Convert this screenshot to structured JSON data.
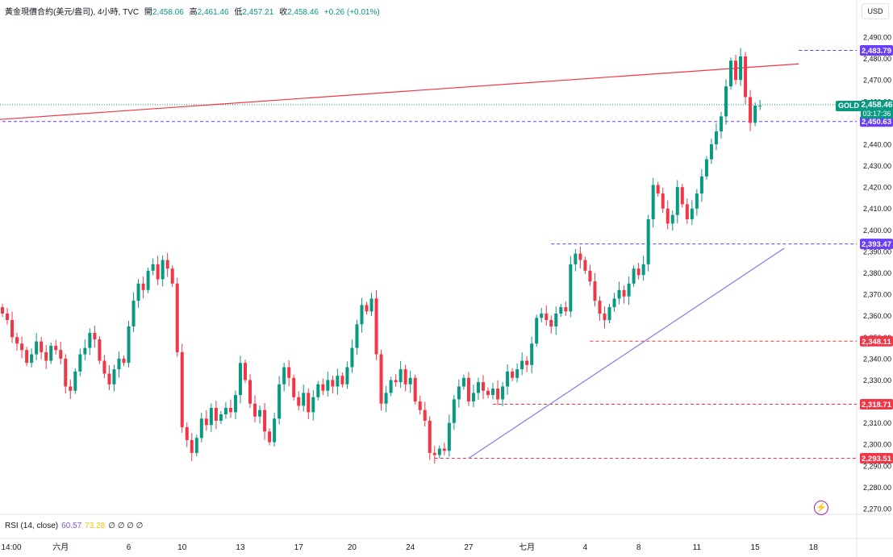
{
  "legend": {
    "symbol_title": "黃金現價合約(美元/盎司), 4小時, TVC",
    "open_label": "開",
    "open": "2,458.06",
    "high_label": "高",
    "high": "2,461.46",
    "low_label": "低",
    "low": "2,457.21",
    "close_label": "收",
    "close": "2,458.46",
    "change": "+0.26 (+0.01%)"
  },
  "currency": "USD",
  "symbol_tag": "GOLD",
  "last_price": {
    "value": "2,458.46",
    "countdown": "03:17:36"
  },
  "rsi": {
    "label": "RSI (14, close)",
    "value1": "60.57",
    "value2": "73.28",
    "zeros": "∅ ∅ ∅ ∅"
  },
  "icons": {
    "flash": "lightning-icon"
  },
  "colors": {
    "up": "#089981",
    "down": "#f23645",
    "blue_line": "#7b7fe8",
    "red_line": "#f07f86",
    "purple": "#6a3dfa",
    "red_tag": "#f23645"
  },
  "chart_data": {
    "type": "candlestick",
    "title": "黃金現價合約(美元/盎司), 4小時, TVC",
    "y_range": [
      2265,
      2495
    ],
    "y_ticks": [
      "2,270.00",
      "2,280.00",
      "2,290.00",
      "2,300.00",
      "2,310.00",
      "2,320.00",
      "2,330.00",
      "2,340.00",
      "2,350.00",
      "2,360.00",
      "2,370.00",
      "2,380.00",
      "2,390.00",
      "2,400.00",
      "2,410.00",
      "2,420.00",
      "2,430.00",
      "2,440.00",
      "2,450.00",
      "2,460.00",
      "2,470.00",
      "2,480.00",
      "2,490.00"
    ],
    "x_labels": [
      "14:00",
      "六月",
      "6",
      "10",
      "13",
      "17",
      "20",
      "24",
      "27",
      "七月",
      "4",
      "8",
      "11",
      "15",
      "18"
    ],
    "x_label_index": [
      0,
      12,
      26,
      37,
      49,
      61,
      72,
      84,
      96,
      108,
      120,
      131,
      143,
      155,
      167
    ],
    "price_levels": [
      {
        "label": "2,483.79",
        "value": 2483.79,
        "color": "purple",
        "start_index": 164
      },
      {
        "label": "2,450.63",
        "value": 2450.63,
        "color": "purple",
        "start_index": 0
      },
      {
        "label": "2,393.47",
        "value": 2393.47,
        "color": "purple",
        "start_index": 113
      },
      {
        "label": "2,348.11",
        "value": 2348.11,
        "color": "red",
        "start_index": 121
      },
      {
        "label": "2,318.71",
        "value": 2318.71,
        "color": "red",
        "start_index": 101
      },
      {
        "label": "2,293.51",
        "value": 2293.51,
        "color": "red",
        "start_index": 89
      }
    ],
    "trendlines": [
      {
        "color": "red",
        "from": [
          -1,
          2451.5
        ],
        "to": [
          164,
          2477.5
        ]
      },
      {
        "color": "blue",
        "from": [
          96,
          2293.5
        ],
        "to": [
          161,
          2391.5
        ]
      }
    ],
    "current_price": 2458.46,
    "closes": [
      2361,
      2358,
      2350,
      2347,
      2344,
      2338,
      2342,
      2348,
      2343,
      2339,
      2346,
      2344,
      2340,
      2327,
      2325,
      2334,
      2342,
      2345,
      2352,
      2349,
      2339,
      2333,
      2328,
      2335,
      2340,
      2338,
      2355,
      2367,
      2375,
      2372,
      2381,
      2384,
      2377,
      2386,
      2382,
      2375,
      2343,
      2308,
      2302,
      2296,
      2303,
      2312,
      2309,
      2317,
      2311,
      2314,
      2317,
      2315,
      2323,
      2338,
      2330,
      2319,
      2313,
      2316,
      2306,
      2301,
      2312,
      2328,
      2336,
      2331,
      2322,
      2318,
      2324,
      2315,
      2322,
      2328,
      2325,
      2330,
      2327,
      2332,
      2328,
      2336,
      2345,
      2356,
      2365,
      2362,
      2368,
      2342,
      2319,
      2324,
      2330,
      2329,
      2335,
      2328,
      2331,
      2320,
      2316,
      2311,
      2296,
      2295,
      2298,
      2297,
      2310,
      2321,
      2327,
      2331,
      2320,
      2324,
      2329,
      2325,
      2323,
      2326,
      2321,
      2327,
      2334,
      2331,
      2335,
      2339,
      2337,
      2347,
      2359,
      2361,
      2358,
      2355,
      2361,
      2364,
      2362,
      2384,
      2389,
      2386,
      2381,
      2376,
      2367,
      2361,
      2358,
      2364,
      2368,
      2372,
      2369,
      2375,
      2382,
      2379,
      2384,
      2405,
      2421,
      2417,
      2410,
      2403,
      2407,
      2420,
      2412,
      2405,
      2410,
      2417,
      2425,
      2433,
      2440,
      2446,
      2453,
      2467,
      2479,
      2470,
      2481,
      2462,
      2450,
      2458,
      2458
    ]
  }
}
